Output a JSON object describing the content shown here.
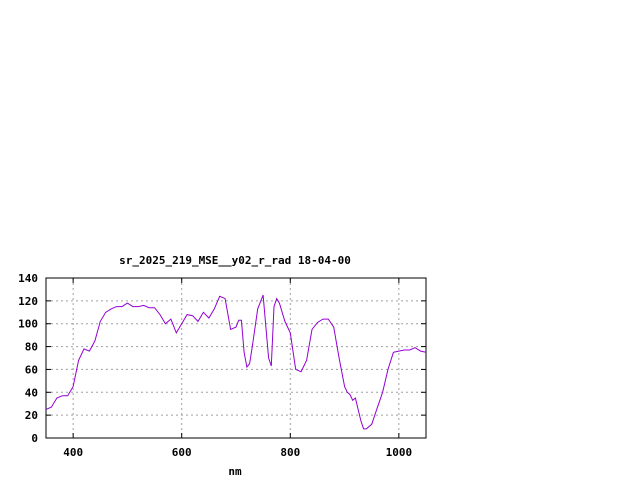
{
  "chart_data": {
    "type": "line",
    "title": "sr_2025_219_MSE__y02_r_rad 18-04-00",
    "xlabel": "nm",
    "ylabel": "",
    "xlim": [
      350,
      1050
    ],
    "ylim": [
      0,
      140
    ],
    "x_ticks": [
      400,
      600,
      800,
      1000
    ],
    "y_ticks": [
      0,
      20,
      40,
      60,
      80,
      100,
      120,
      140
    ],
    "grid": true,
    "line_color": "#9400d3",
    "series": [
      {
        "x": [
          350,
          360,
          370,
          380,
          390,
          400,
          410,
          420,
          430,
          440,
          450,
          460,
          470,
          480,
          490,
          500,
          510,
          520,
          530,
          540,
          550,
          560,
          570,
          580,
          590,
          600,
          610,
          620,
          630,
          640,
          650,
          660,
          670,
          680,
          690,
          700,
          705,
          710,
          715,
          720,
          725,
          730,
          740,
          750,
          760,
          765,
          770,
          775,
          780,
          790,
          800,
          810,
          820,
          830,
          840,
          850,
          860,
          870,
          880,
          890,
          900,
          905,
          910,
          915,
          920,
          925,
          930,
          935,
          940,
          950,
          960,
          970,
          980,
          990,
          1000,
          1010,
          1020,
          1030,
          1040,
          1050
        ],
        "values": [
          25,
          27,
          35,
          37,
          37,
          45,
          68,
          78,
          76,
          85,
          102,
          110,
          113,
          115,
          115,
          118,
          115,
          115,
          116,
          114,
          114,
          108,
          100,
          104,
          92,
          100,
          108,
          107,
          102,
          110,
          105,
          113,
          124,
          122,
          95,
          97,
          103,
          103,
          75,
          62,
          65,
          80,
          113,
          125,
          70,
          63,
          115,
          122,
          118,
          102,
          92,
          60,
          58,
          68,
          95,
          101,
          104,
          104,
          97,
          70,
          45,
          40,
          38,
          33,
          35,
          25,
          15,
          8,
          8,
          12,
          26,
          40,
          60,
          75,
          76,
          77,
          77,
          79,
          76,
          75
        ]
      }
    ]
  }
}
